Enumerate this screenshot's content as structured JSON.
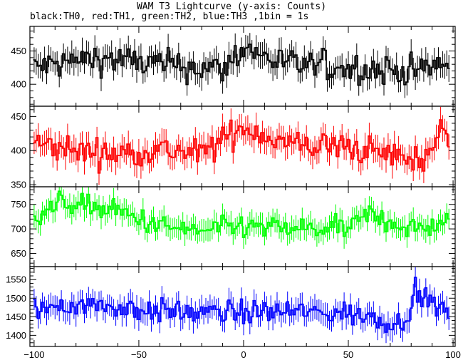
{
  "chart_data": {
    "type": "line",
    "title": "WAM T3 Lightcurve (y-axis: Counts)",
    "subtitle": "black:TH0, red:TH1, green:TH2, blue:TH3 ,1bin = 1s",
    "xlim": [
      -102,
      101
    ],
    "x_ticks": [
      -100,
      -50,
      0,
      50,
      100
    ],
    "x_tick_labels": [
      "−100",
      "−50",
      "0",
      "50",
      "100"
    ],
    "panels": [
      {
        "id": "th0",
        "color": "#000000",
        "ylim": [
          367,
          487
        ],
        "y_ticks": [
          400,
          450
        ],
        "base": 431,
        "amp": 22,
        "err": 18,
        "keypoints": [
          [
            -100,
            425
          ],
          [
            -70,
            440
          ],
          [
            -40,
            430
          ],
          [
            -10,
            422
          ],
          [
            0,
            455
          ],
          [
            20,
            430
          ],
          [
            50,
            425
          ],
          [
            80,
            420
          ],
          [
            98,
            430
          ]
        ]
      },
      {
        "id": "th1",
        "color": "#ff0000",
        "ylim": [
          347,
          465
        ],
        "y_ticks": [
          350,
          400,
          450
        ],
        "base": 405,
        "amp": 20,
        "err": 18,
        "keypoints": [
          [
            -100,
            410
          ],
          [
            -80,
            400
          ],
          [
            -60,
            395
          ],
          [
            -40,
            402
          ],
          [
            -20,
            395
          ],
          [
            0,
            435
          ],
          [
            20,
            410
          ],
          [
            50,
            405
          ],
          [
            85,
            385
          ],
          [
            95,
            430
          ],
          [
            98,
            410
          ]
        ]
      },
      {
        "id": "th2",
        "color": "#00ff00",
        "ylim": [
          623,
          786
        ],
        "y_ticks": [
          650,
          700,
          750
        ],
        "base": 712,
        "amp": 22,
        "err": 22,
        "keypoints": [
          [
            -100,
            730
          ],
          [
            -85,
            755
          ],
          [
            -60,
            735
          ],
          [
            -40,
            705
          ],
          [
            -20,
            695
          ],
          [
            0,
            705
          ],
          [
            20,
            700
          ],
          [
            50,
            700
          ],
          [
            60,
            730
          ],
          [
            80,
            700
          ],
          [
            98,
            710
          ]
        ]
      },
      {
        "id": "th3",
        "color": "#0000ff",
        "ylim": [
          1370,
          1585
        ],
        "y_ticks": [
          1400,
          1450,
          1500,
          1550
        ],
        "base": 1462,
        "amp": 30,
        "err": 30,
        "keypoints": [
          [
            -100,
            1470
          ],
          [
            -80,
            1485
          ],
          [
            -60,
            1475
          ],
          [
            -40,
            1465
          ],
          [
            -20,
            1460
          ],
          [
            0,
            1462
          ],
          [
            20,
            1465
          ],
          [
            50,
            1458
          ],
          [
            65,
            1445
          ],
          [
            75,
            1430
          ],
          [
            82,
            1510
          ],
          [
            98,
            1460
          ]
        ]
      }
    ]
  }
}
